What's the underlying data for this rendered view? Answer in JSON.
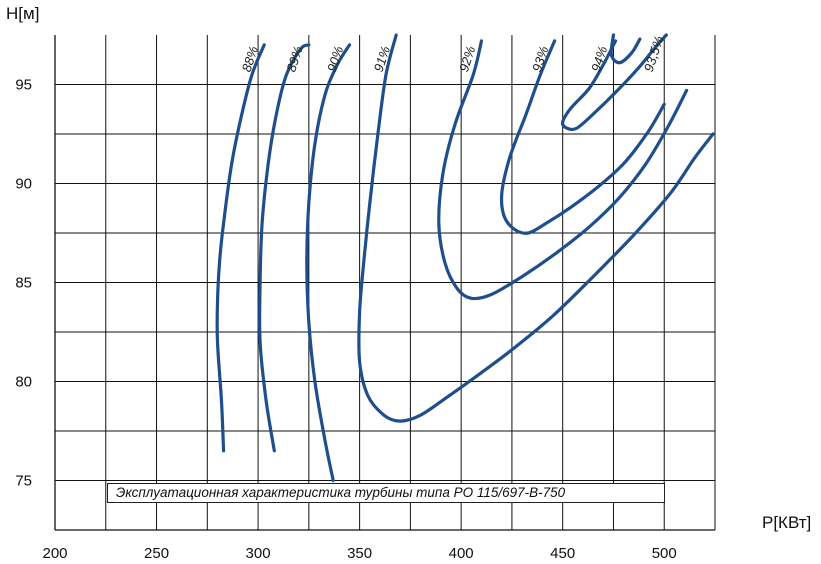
{
  "chart_data": {
    "type": "line",
    "title": "",
    "caption": "Эксплуатационная характеристика турбины типа РО 115/697-В-750",
    "xlabel": "P[КВт]",
    "ylabel": "H[м]",
    "xlim": [
      200,
      525
    ],
    "ylim": [
      72.5,
      97.5
    ],
    "xticks": [
      200,
      250,
      300,
      350,
      400,
      450,
      500
    ],
    "yticks": [
      75,
      80,
      85,
      90,
      95
    ],
    "grid": true,
    "line_color": "#1f4e8c",
    "series": [
      {
        "name": "88%",
        "points": [
          [
            283,
            76.5
          ],
          [
            282,
            79
          ],
          [
            280,
            82
          ],
          [
            280,
            84
          ],
          [
            281,
            86
          ],
          [
            283,
            88
          ],
          [
            287,
            91
          ],
          [
            292,
            93.5
          ],
          [
            297,
            95.5
          ],
          [
            303,
            97
          ]
        ]
      },
      {
        "name": "89%",
        "points": [
          [
            308,
            76.5
          ],
          [
            304,
            79
          ],
          [
            301,
            82
          ],
          [
            301,
            85
          ],
          [
            302,
            88
          ],
          [
            305,
            91
          ],
          [
            309,
            93.5
          ],
          [
            314,
            95.5
          ],
          [
            321,
            96.8
          ],
          [
            325,
            97
          ]
        ]
      },
      {
        "name": "90%",
        "points": [
          [
            337,
            75
          ],
          [
            333,
            77
          ],
          [
            328,
            80
          ],
          [
            325,
            83
          ],
          [
            324,
            86
          ],
          [
            325,
            89
          ],
          [
            328,
            92
          ],
          [
            333,
            94.5
          ],
          [
            339,
            96
          ],
          [
            345,
            97
          ]
        ]
      },
      {
        "name": "91%",
        "points": [
          [
            368,
            97.5
          ],
          [
            363,
            95.5
          ],
          [
            359,
            92.5
          ],
          [
            355,
            89
          ],
          [
            352,
            86
          ],
          [
            350,
            83.5
          ],
          [
            350,
            81
          ],
          [
            354,
            79.3
          ],
          [
            362,
            78.3
          ],
          [
            370,
            78
          ],
          [
            380,
            78.3
          ],
          [
            393,
            79.2
          ],
          [
            408,
            80.3
          ],
          [
            425,
            81.6
          ],
          [
            445,
            83.3
          ],
          [
            465,
            85.3
          ],
          [
            485,
            87.4
          ],
          [
            503,
            89.5
          ],
          [
            515,
            91.3
          ],
          [
            524,
            92.5
          ]
        ]
      },
      {
        "name": "92%",
        "points": [
          [
            410,
            97.2
          ],
          [
            406,
            95.5
          ],
          [
            397,
            93
          ],
          [
            391,
            90.5
          ],
          [
            389,
            88
          ],
          [
            392,
            86
          ],
          [
            398,
            84.7
          ],
          [
            405,
            84.2
          ],
          [
            415,
            84.4
          ],
          [
            430,
            85.3
          ],
          [
            447,
            86.5
          ],
          [
            463,
            87.8
          ],
          [
            478,
            89.3
          ],
          [
            491,
            91
          ],
          [
            502,
            92.9
          ],
          [
            511,
            94.7
          ]
        ]
      },
      {
        "name": "93%",
        "points": [
          [
            446,
            97.2
          ],
          [
            439,
            95.5
          ],
          [
            432,
            93.5
          ],
          [
            427,
            92.2
          ],
          [
            423,
            91
          ],
          [
            420,
            89.5
          ],
          [
            421,
            88.4
          ],
          [
            426,
            87.7
          ],
          [
            433,
            87.5
          ],
          [
            442,
            88
          ],
          [
            454,
            88.8
          ],
          [
            467,
            89.8
          ],
          [
            480,
            91
          ],
          [
            492,
            92.6
          ],
          [
            500,
            94
          ]
        ]
      },
      {
        "name": "93,5%",
        "points": [
          [
            476,
            97.2
          ],
          [
            470,
            96
          ],
          [
            463,
            94.8
          ],
          [
            454,
            93.8
          ],
          [
            450,
            93.1
          ],
          [
            452,
            92.8
          ],
          [
            457,
            92.8
          ],
          [
            466,
            93.6
          ],
          [
            476,
            94.6
          ],
          [
            487,
            95.8
          ],
          [
            495,
            96.8
          ],
          [
            501,
            97.5
          ]
        ]
      },
      {
        "name": "94%",
        "points": [
          [
            475,
            97.5
          ],
          [
            474,
            96.5
          ],
          [
            478,
            96.1
          ],
          [
            484,
            96.6
          ],
          [
            488,
            97.3
          ]
        ]
      }
    ]
  }
}
